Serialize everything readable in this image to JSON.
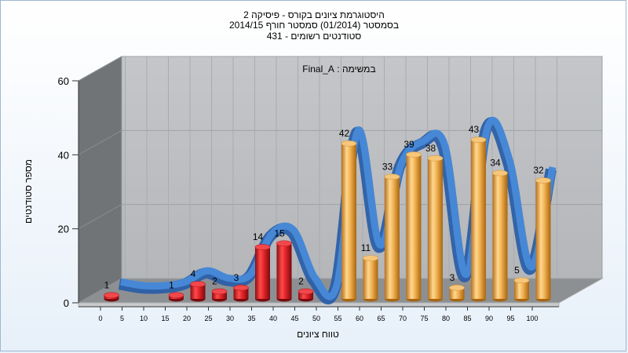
{
  "chart_data": {
    "type": "bar",
    "title_lines": [
      "היסטוגרמת ציונים בקורס - פיסיקה 2",
      "בסמסטר  (01/2014)  סמסטר חורף 2014/15",
      "סטודנטים רשומים - 431"
    ],
    "task_label": "במשימה : Final_A",
    "xlabel": "טווח ציונים",
    "ylabel": "מספר סטודנטים",
    "ylim": [
      0,
      60
    ],
    "y_ticks": [
      "0",
      "20",
      "40",
      "60"
    ],
    "x_ticks": [
      "0",
      "5",
      "10",
      "15",
      "20",
      "25",
      "30",
      "35",
      "40",
      "45",
      "50",
      "55",
      "60",
      "65",
      "70",
      "75",
      "80",
      "85",
      "90",
      "95",
      "100"
    ],
    "bins": [
      0,
      5,
      10,
      15,
      20,
      25,
      30,
      35,
      40,
      45,
      50,
      55,
      60,
      65,
      70,
      75,
      80,
      85,
      90,
      95,
      100
    ],
    "values": [
      1,
      0,
      0,
      1,
      4,
      2,
      3,
      14,
      15,
      2,
      0,
      42,
      11,
      33,
      39,
      38,
      3,
      43,
      34,
      5,
      32
    ],
    "pass_threshold": 55,
    "colors": {
      "fail_bar": "#e0242a",
      "pass_bar": "#f0b050",
      "ribbon": "#3a78c9",
      "wall": "#b9bcc0",
      "side_wall": "#6f7376",
      "floor": "#8c8f92"
    },
    "grid": true
  }
}
